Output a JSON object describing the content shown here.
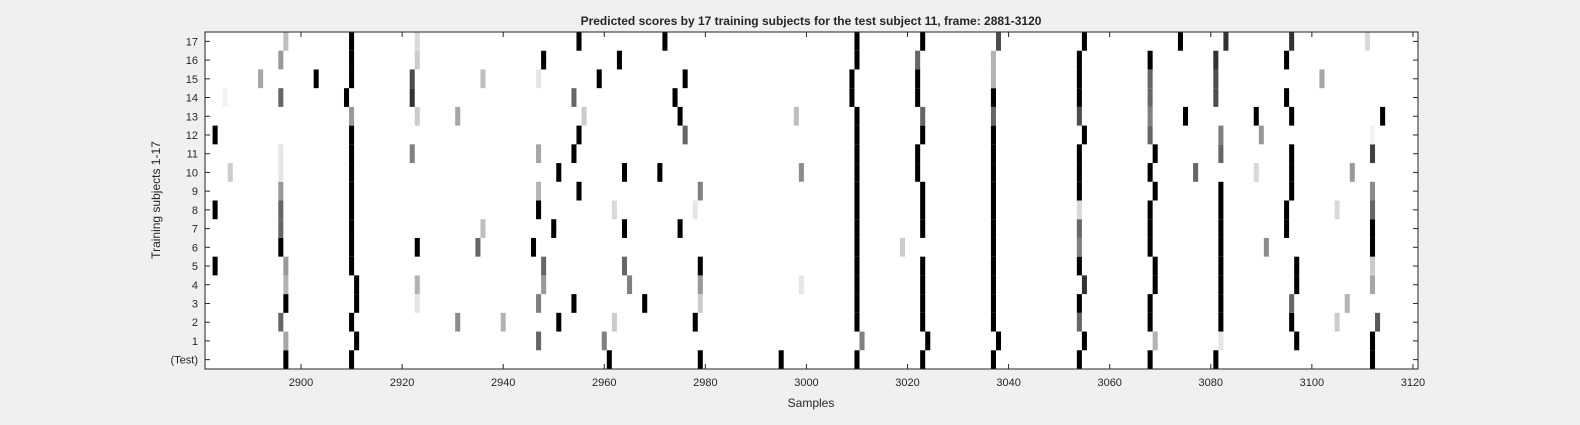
{
  "chart_data": {
    "type": "heatmap",
    "title": "Predicted scores by 17 training subjects for the test subject 11, frame: 2881-3120",
    "xlabel": "Samples",
    "ylabel": "Training subjects 1-17",
    "xlim": [
      2881,
      3120
    ],
    "xticks": [
      2900,
      2920,
      2940,
      2960,
      2980,
      3000,
      3020,
      3040,
      3060,
      3080,
      3100,
      3120
    ],
    "rows": [
      "(Test)",
      "1",
      "2",
      "3",
      "4",
      "5",
      "6",
      "7",
      "8",
      "9",
      "10",
      "11",
      "12",
      "13",
      "14",
      "15",
      "16",
      "17"
    ],
    "colormap": "gray-reversed (white = 0, black = 1)",
    "grid": false,
    "marks": [
      {
        "row": "(Test)",
        "x": 2897,
        "v": 1.0
      },
      {
        "row": "(Test)",
        "x": 2910,
        "v": 1.0
      },
      {
        "row": "(Test)",
        "x": 2961,
        "v": 1.0
      },
      {
        "row": "(Test)",
        "x": 2979,
        "v": 1.0
      },
      {
        "row": "(Test)",
        "x": 2995,
        "v": 1.0
      },
      {
        "row": "(Test)",
        "x": 3010,
        "v": 1.0
      },
      {
        "row": "(Test)",
        "x": 3023,
        "v": 1.0
      },
      {
        "row": "(Test)",
        "x": 3037,
        "v": 1.0
      },
      {
        "row": "(Test)",
        "x": 3054,
        "v": 1.0
      },
      {
        "row": "(Test)",
        "x": 3068,
        "v": 1.0
      },
      {
        "row": "(Test)",
        "x": 3081,
        "v": 1.0
      },
      {
        "row": "(Test)",
        "x": 3112,
        "v": 1.0
      },
      {
        "row": "1",
        "x": 2897,
        "v": 0.35
      },
      {
        "row": "1",
        "x": 2911,
        "v": 1.0
      },
      {
        "row": "1",
        "x": 2947,
        "v": 0.6
      },
      {
        "row": "1",
        "x": 2960,
        "v": 0.5
      },
      {
        "row": "1",
        "x": 3011,
        "v": 0.5
      },
      {
        "row": "1",
        "x": 3024,
        "v": 1.0
      },
      {
        "row": "1",
        "x": 3038,
        "v": 1.0
      },
      {
        "row": "1",
        "x": 3055,
        "v": 1.0
      },
      {
        "row": "1",
        "x": 3069,
        "v": 0.3
      },
      {
        "row": "1",
        "x": 3082,
        "v": 0.1
      },
      {
        "row": "1",
        "x": 3097,
        "v": 1.0
      },
      {
        "row": "1",
        "x": 3112,
        "v": 1.0
      },
      {
        "row": "2",
        "x": 2896,
        "v": 0.6
      },
      {
        "row": "2",
        "x": 2910,
        "v": 1.0
      },
      {
        "row": "2",
        "x": 2931,
        "v": 0.45
      },
      {
        "row": "2",
        "x": 2940,
        "v": 0.3
      },
      {
        "row": "2",
        "x": 2951,
        "v": 1.0
      },
      {
        "row": "2",
        "x": 2962,
        "v": 0.2
      },
      {
        "row": "2",
        "x": 2978,
        "v": 1.0
      },
      {
        "row": "2",
        "x": 3010,
        "v": 1.0
      },
      {
        "row": "2",
        "x": 3023,
        "v": 1.0
      },
      {
        "row": "2",
        "x": 3037,
        "v": 1.0
      },
      {
        "row": "2",
        "x": 3054,
        "v": 0.6
      },
      {
        "row": "2",
        "x": 3068,
        "v": 1.0
      },
      {
        "row": "2",
        "x": 3082,
        "v": 1.0
      },
      {
        "row": "2",
        "x": 3096,
        "v": 1.0
      },
      {
        "row": "2",
        "x": 3105,
        "v": 0.2
      },
      {
        "row": "2",
        "x": 3113,
        "v": 0.65
      },
      {
        "row": "3",
        "x": 2897,
        "v": 1.0
      },
      {
        "row": "3",
        "x": 2911,
        "v": 1.0
      },
      {
        "row": "3",
        "x": 2923,
        "v": 0.1
      },
      {
        "row": "3",
        "x": 2947,
        "v": 0.5
      },
      {
        "row": "3",
        "x": 2954,
        "v": 1.0
      },
      {
        "row": "3",
        "x": 2968,
        "v": 1.0
      },
      {
        "row": "3",
        "x": 2979,
        "v": 0.2
      },
      {
        "row": "3",
        "x": 3010,
        "v": 1.0
      },
      {
        "row": "3",
        "x": 3023,
        "v": 1.0
      },
      {
        "row": "3",
        "x": 3037,
        "v": 1.0
      },
      {
        "row": "3",
        "x": 3054,
        "v": 1.0
      },
      {
        "row": "3",
        "x": 3068,
        "v": 1.0
      },
      {
        "row": "3",
        "x": 3082,
        "v": 1.0
      },
      {
        "row": "3",
        "x": 3096,
        "v": 0.6
      },
      {
        "row": "3",
        "x": 3107,
        "v": 0.3
      },
      {
        "row": "4",
        "x": 2897,
        "v": 0.3
      },
      {
        "row": "4",
        "x": 2911,
        "v": 1.0
      },
      {
        "row": "4",
        "x": 2923,
        "v": 0.3
      },
      {
        "row": "4",
        "x": 2948,
        "v": 0.4
      },
      {
        "row": "4",
        "x": 2965,
        "v": 0.5
      },
      {
        "row": "4",
        "x": 2979,
        "v": 0.4
      },
      {
        "row": "4",
        "x": 2999,
        "v": 0.1
      },
      {
        "row": "4",
        "x": 3010,
        "v": 1.0
      },
      {
        "row": "4",
        "x": 3023,
        "v": 1.0
      },
      {
        "row": "4",
        "x": 3037,
        "v": 1.0
      },
      {
        "row": "4",
        "x": 3055,
        "v": 0.8
      },
      {
        "row": "4",
        "x": 3069,
        "v": 1.0
      },
      {
        "row": "4",
        "x": 3082,
        "v": 1.0
      },
      {
        "row": "4",
        "x": 3097,
        "v": 1.0
      },
      {
        "row": "4",
        "x": 3112,
        "v": 0.35
      },
      {
        "row": "5",
        "x": 2883,
        "v": 1.0
      },
      {
        "row": "5",
        "x": 2897,
        "v": 0.4
      },
      {
        "row": "5",
        "x": 2910,
        "v": 1.0
      },
      {
        "row": "5",
        "x": 2948,
        "v": 0.6
      },
      {
        "row": "5",
        "x": 2964,
        "v": 0.6
      },
      {
        "row": "5",
        "x": 2979,
        "v": 1.0
      },
      {
        "row": "5",
        "x": 3010,
        "v": 1.0
      },
      {
        "row": "5",
        "x": 3023,
        "v": 1.0
      },
      {
        "row": "5",
        "x": 3037,
        "v": 1.0
      },
      {
        "row": "5",
        "x": 3054,
        "v": 1.0
      },
      {
        "row": "5",
        "x": 3069,
        "v": 1.0
      },
      {
        "row": "5",
        "x": 3082,
        "v": 1.0
      },
      {
        "row": "5",
        "x": 3097,
        "v": 1.0
      },
      {
        "row": "5",
        "x": 3112,
        "v": 0.2
      },
      {
        "row": "6",
        "x": 2896,
        "v": 1.0
      },
      {
        "row": "6",
        "x": 2910,
        "v": 1.0
      },
      {
        "row": "6",
        "x": 2923,
        "v": 1.0
      },
      {
        "row": "6",
        "x": 2935,
        "v": 0.6
      },
      {
        "row": "6",
        "x": 2946,
        "v": 1.0
      },
      {
        "row": "6",
        "x": 3010,
        "v": 1.0
      },
      {
        "row": "6",
        "x": 3019,
        "v": 0.2
      },
      {
        "row": "6",
        "x": 3037,
        "v": 1.0
      },
      {
        "row": "6",
        "x": 3054,
        "v": 0.5
      },
      {
        "row": "6",
        "x": 3068,
        "v": 1.0
      },
      {
        "row": "6",
        "x": 3082,
        "v": 1.0
      },
      {
        "row": "6",
        "x": 3091,
        "v": 0.45
      },
      {
        "row": "6",
        "x": 3112,
        "v": 1.0
      },
      {
        "row": "7",
        "x": 2896,
        "v": 0.6
      },
      {
        "row": "7",
        "x": 2910,
        "v": 1.0
      },
      {
        "row": "7",
        "x": 2936,
        "v": 0.25
      },
      {
        "row": "7",
        "x": 2950,
        "v": 1.0
      },
      {
        "row": "7",
        "x": 2964,
        "v": 1.0
      },
      {
        "row": "7",
        "x": 2975,
        "v": 1.0
      },
      {
        "row": "7",
        "x": 3010,
        "v": 1.0
      },
      {
        "row": "7",
        "x": 3023,
        "v": 1.0
      },
      {
        "row": "7",
        "x": 3037,
        "v": 1.0
      },
      {
        "row": "7",
        "x": 3054,
        "v": 0.6
      },
      {
        "row": "7",
        "x": 3068,
        "v": 1.0
      },
      {
        "row": "7",
        "x": 3082,
        "v": 1.0
      },
      {
        "row": "7",
        "x": 3095,
        "v": 1.0
      },
      {
        "row": "7",
        "x": 3112,
        "v": 1.0
      },
      {
        "row": "8",
        "x": 2883,
        "v": 1.0
      },
      {
        "row": "8",
        "x": 2896,
        "v": 0.6
      },
      {
        "row": "8",
        "x": 2910,
        "v": 1.0
      },
      {
        "row": "8",
        "x": 2947,
        "v": 1.0
      },
      {
        "row": "8",
        "x": 2962,
        "v": 0.15
      },
      {
        "row": "8",
        "x": 2978,
        "v": 0.1
      },
      {
        "row": "8",
        "x": 3010,
        "v": 1.0
      },
      {
        "row": "8",
        "x": 3023,
        "v": 1.0
      },
      {
        "row": "8",
        "x": 3037,
        "v": 1.0
      },
      {
        "row": "8",
        "x": 3054,
        "v": 0.15
      },
      {
        "row": "8",
        "x": 3068,
        "v": 1.0
      },
      {
        "row": "8",
        "x": 3082,
        "v": 1.0
      },
      {
        "row": "8",
        "x": 3095,
        "v": 1.0
      },
      {
        "row": "8",
        "x": 3105,
        "v": 0.15
      },
      {
        "row": "8",
        "x": 3112,
        "v": 0.6
      },
      {
        "row": "9",
        "x": 2896,
        "v": 0.4
      },
      {
        "row": "9",
        "x": 2910,
        "v": 1.0
      },
      {
        "row": "9",
        "x": 2947,
        "v": 0.3
      },
      {
        "row": "9",
        "x": 2955,
        "v": 1.0
      },
      {
        "row": "9",
        "x": 2979,
        "v": 0.5
      },
      {
        "row": "9",
        "x": 3010,
        "v": 1.0
      },
      {
        "row": "9",
        "x": 3023,
        "v": 1.0
      },
      {
        "row": "9",
        "x": 3037,
        "v": 1.0
      },
      {
        "row": "9",
        "x": 3054,
        "v": 1.0
      },
      {
        "row": "9",
        "x": 3069,
        "v": 1.0
      },
      {
        "row": "9",
        "x": 3082,
        "v": 1.0
      },
      {
        "row": "9",
        "x": 3096,
        "v": 1.0
      },
      {
        "row": "9",
        "x": 3112,
        "v": 0.45
      },
      {
        "row": "10",
        "x": 2886,
        "v": 0.2
      },
      {
        "row": "10",
        "x": 2896,
        "v": 0.1
      },
      {
        "row": "10",
        "x": 2910,
        "v": 1.0
      },
      {
        "row": "10",
        "x": 2951,
        "v": 1.0
      },
      {
        "row": "10",
        "x": 2964,
        "v": 1.0
      },
      {
        "row": "10",
        "x": 2971,
        "v": 1.0
      },
      {
        "row": "10",
        "x": 2999,
        "v": 0.45
      },
      {
        "row": "10",
        "x": 3010,
        "v": 1.0
      },
      {
        "row": "10",
        "x": 3022,
        "v": 1.0
      },
      {
        "row": "10",
        "x": 3037,
        "v": 1.0
      },
      {
        "row": "10",
        "x": 3054,
        "v": 1.0
      },
      {
        "row": "10",
        "x": 3068,
        "v": 1.0
      },
      {
        "row": "10",
        "x": 3077,
        "v": 0.6
      },
      {
        "row": "10",
        "x": 3089,
        "v": 0.15
      },
      {
        "row": "10",
        "x": 3096,
        "v": 1.0
      },
      {
        "row": "10",
        "x": 3108,
        "v": 0.4
      },
      {
        "row": "11",
        "x": 2896,
        "v": 0.1
      },
      {
        "row": "11",
        "x": 2910,
        "v": 1.0
      },
      {
        "row": "11",
        "x": 2922,
        "v": 0.5
      },
      {
        "row": "11",
        "x": 2947,
        "v": 0.35
      },
      {
        "row": "11",
        "x": 2954,
        "v": 1.0
      },
      {
        "row": "11",
        "x": 3010,
        "v": 1.0
      },
      {
        "row": "11",
        "x": 3022,
        "v": 1.0
      },
      {
        "row": "11",
        "x": 3037,
        "v": 1.0
      },
      {
        "row": "11",
        "x": 3054,
        "v": 1.0
      },
      {
        "row": "11",
        "x": 3069,
        "v": 1.0
      },
      {
        "row": "11",
        "x": 3082,
        "v": 0.6
      },
      {
        "row": "11",
        "x": 3096,
        "v": 1.0
      },
      {
        "row": "11",
        "x": 3112,
        "v": 0.75
      },
      {
        "row": "12",
        "x": 2883,
        "v": 1.0
      },
      {
        "row": "12",
        "x": 2910,
        "v": 1.0
      },
      {
        "row": "12",
        "x": 2955,
        "v": 1.0
      },
      {
        "row": "12",
        "x": 2976,
        "v": 0.6
      },
      {
        "row": "12",
        "x": 3010,
        "v": 1.0
      },
      {
        "row": "12",
        "x": 3023,
        "v": 1.0
      },
      {
        "row": "12",
        "x": 3037,
        "v": 1.0
      },
      {
        "row": "12",
        "x": 3055,
        "v": 1.0
      },
      {
        "row": "12",
        "x": 3068,
        "v": 0.6
      },
      {
        "row": "12",
        "x": 3082,
        "v": 0.5
      },
      {
        "row": "12",
        "x": 3090,
        "v": 0.4
      },
      {
        "row": "12",
        "x": 3112,
        "v": 0.05
      },
      {
        "row": "13",
        "x": 2910,
        "v": 0.4
      },
      {
        "row": "13",
        "x": 2923,
        "v": 0.2
      },
      {
        "row": "13",
        "x": 2931,
        "v": 0.35
      },
      {
        "row": "13",
        "x": 2956,
        "v": 0.2
      },
      {
        "row": "13",
        "x": 2975,
        "v": 1.0
      },
      {
        "row": "13",
        "x": 2998,
        "v": 0.25
      },
      {
        "row": "13",
        "x": 3010,
        "v": 1.0
      },
      {
        "row": "13",
        "x": 3023,
        "v": 0.6
      },
      {
        "row": "13",
        "x": 3037,
        "v": 0.6
      },
      {
        "row": "13",
        "x": 3054,
        "v": 0.7
      },
      {
        "row": "13",
        "x": 3068,
        "v": 0.5
      },
      {
        "row": "13",
        "x": 3075,
        "v": 1.0
      },
      {
        "row": "13",
        "x": 3089,
        "v": 1.0
      },
      {
        "row": "13",
        "x": 3096,
        "v": 1.0
      },
      {
        "row": "13",
        "x": 3114,
        "v": 1.0
      },
      {
        "row": "14",
        "x": 2885,
        "v": 0.05
      },
      {
        "row": "14",
        "x": 2896,
        "v": 0.6
      },
      {
        "row": "14",
        "x": 2909,
        "v": 1.0
      },
      {
        "row": "14",
        "x": 2922,
        "v": 0.8
      },
      {
        "row": "14",
        "x": 2954,
        "v": 0.6
      },
      {
        "row": "14",
        "x": 2974,
        "v": 1.0
      },
      {
        "row": "14",
        "x": 3009,
        "v": 1.0
      },
      {
        "row": "14",
        "x": 3022,
        "v": 1.0
      },
      {
        "row": "14",
        "x": 3037,
        "v": 1.0
      },
      {
        "row": "14",
        "x": 3054,
        "v": 1.0
      },
      {
        "row": "14",
        "x": 3068,
        "v": 0.6
      },
      {
        "row": "14",
        "x": 3081,
        "v": 0.7
      },
      {
        "row": "14",
        "x": 3095,
        "v": 1.0
      },
      {
        "row": "15",
        "x": 2892,
        "v": 0.35
      },
      {
        "row": "15",
        "x": 2903,
        "v": 1.0
      },
      {
        "row": "15",
        "x": 2910,
        "v": 1.0
      },
      {
        "row": "15",
        "x": 2922,
        "v": 0.7
      },
      {
        "row": "15",
        "x": 2936,
        "v": 0.25
      },
      {
        "row": "15",
        "x": 2947,
        "v": 0.1
      },
      {
        "row": "15",
        "x": 2959,
        "v": 1.0
      },
      {
        "row": "15",
        "x": 2976,
        "v": 1.0
      },
      {
        "row": "15",
        "x": 3009,
        "v": 1.0
      },
      {
        "row": "15",
        "x": 3022,
        "v": 1.0
      },
      {
        "row": "15",
        "x": 3037,
        "v": 0.3
      },
      {
        "row": "15",
        "x": 3054,
        "v": 1.0
      },
      {
        "row": "15",
        "x": 3068,
        "v": 0.6
      },
      {
        "row": "15",
        "x": 3081,
        "v": 0.7
      },
      {
        "row": "15",
        "x": 3102,
        "v": 0.35
      },
      {
        "row": "16",
        "x": 2896,
        "v": 0.4
      },
      {
        "row": "16",
        "x": 2910,
        "v": 1.0
      },
      {
        "row": "16",
        "x": 2923,
        "v": 0.2
      },
      {
        "row": "16",
        "x": 2948,
        "v": 1.0
      },
      {
        "row": "16",
        "x": 2963,
        "v": 1.0
      },
      {
        "row": "16",
        "x": 3010,
        "v": 1.0
      },
      {
        "row": "16",
        "x": 3022,
        "v": 0.6
      },
      {
        "row": "16",
        "x": 3037,
        "v": 0.3
      },
      {
        "row": "16",
        "x": 3054,
        "v": 1.0
      },
      {
        "row": "16",
        "x": 3068,
        "v": 1.0
      },
      {
        "row": "16",
        "x": 3081,
        "v": 0.8
      },
      {
        "row": "16",
        "x": 3095,
        "v": 1.0
      },
      {
        "row": "17",
        "x": 2897,
        "v": 0.25
      },
      {
        "row": "17",
        "x": 2910,
        "v": 1.0
      },
      {
        "row": "17",
        "x": 2923,
        "v": 0.15
      },
      {
        "row": "17",
        "x": 2955,
        "v": 1.0
      },
      {
        "row": "17",
        "x": 2972,
        "v": 1.0
      },
      {
        "row": "17",
        "x": 3010,
        "v": 1.0
      },
      {
        "row": "17",
        "x": 3023,
        "v": 1.0
      },
      {
        "row": "17",
        "x": 3038,
        "v": 0.7
      },
      {
        "row": "17",
        "x": 3055,
        "v": 1.0
      },
      {
        "row": "17",
        "x": 3074,
        "v": 1.0
      },
      {
        "row": "17",
        "x": 3083,
        "v": 0.8
      },
      {
        "row": "17",
        "x": 3096,
        "v": 0.8
      },
      {
        "row": "17",
        "x": 3111,
        "v": 0.15
      }
    ]
  }
}
